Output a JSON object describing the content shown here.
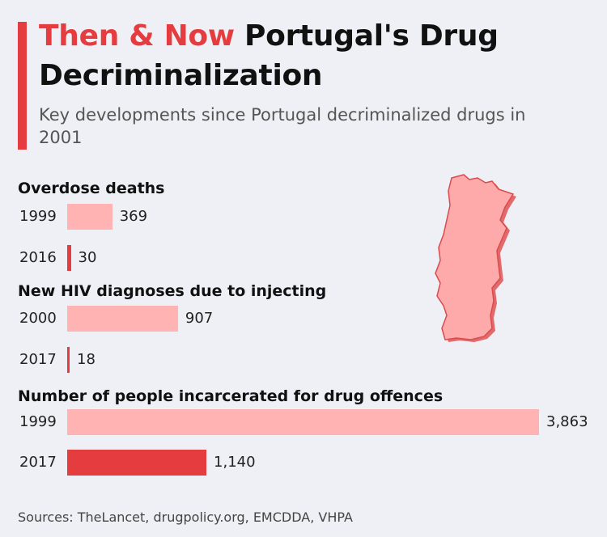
{
  "header": {
    "title_highlight": "Then & Now",
    "title_rest": "Portugal's Drug Decriminalization",
    "subtitle": "Key developments since Portugal decriminalized drugs in 2001"
  },
  "chart_data": {
    "type": "bar",
    "orientation": "horizontal",
    "colors": {
      "old": "#ffb3b3",
      "new": "#e53d3f",
      "accent": "#e53d3f"
    },
    "groups": [
      {
        "title": "Overdose deaths",
        "bars": [
          {
            "year": "1999",
            "value": 369,
            "label": "369",
            "color": "old"
          },
          {
            "year": "2016",
            "value": 30,
            "label": "30",
            "color": "new"
          }
        ]
      },
      {
        "title": "New HIV diagnoses due to injecting",
        "bars": [
          {
            "year": "2000",
            "value": 907,
            "label": "907",
            "color": "old"
          },
          {
            "year": "2017",
            "value": 18,
            "label": "18",
            "color": "new"
          }
        ]
      },
      {
        "title": "Number of people incarcerated for drug offences",
        "bars": [
          {
            "year": "1999",
            "value": 3863,
            "label": "3,863",
            "color": "old"
          },
          {
            "year": "2017",
            "value": 1140,
            "label": "1,140",
            "color": "new"
          }
        ]
      }
    ]
  },
  "footer": {
    "sources": "Sources: TheLancet, drugpolicy.org, EMCDDA, VHPA"
  },
  "map": {
    "icon": "portugal-map-icon"
  }
}
